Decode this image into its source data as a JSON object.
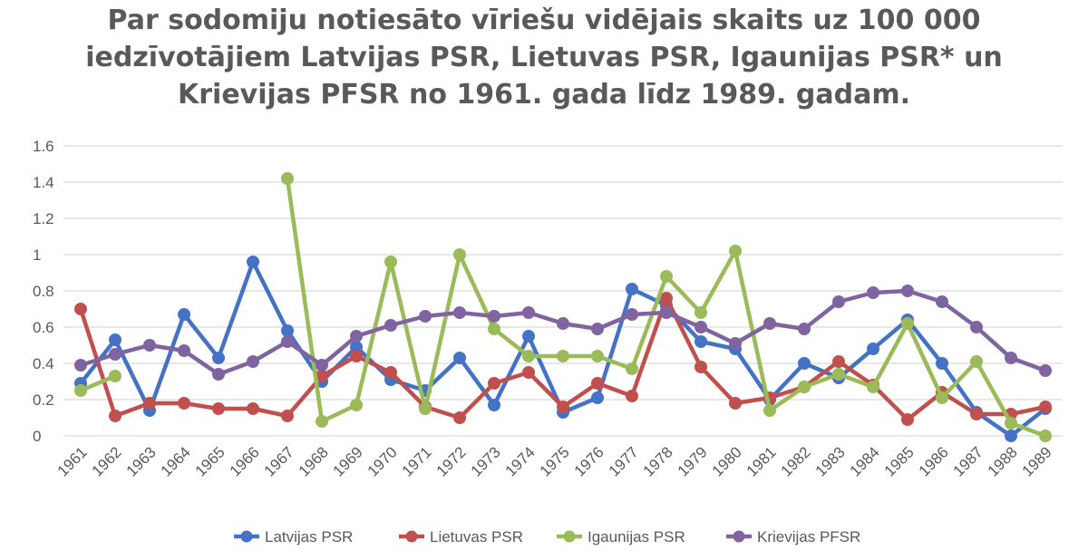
{
  "chart_data": {
    "type": "line",
    "title_lines": [
      "Par sodomiju notiesāto vīriešu vidējais skaits uz 100 000",
      "iedzīvotājiem Latvijas PSR, Lietuvas PSR, Igaunijas PSR* un",
      "Krievijas PFSR no 1961. gada līdz 1989. gadam."
    ],
    "categories": [
      "1961",
      "1962",
      "1963",
      "1964",
      "1965",
      "1966",
      "1967",
      "1968",
      "1969",
      "1970",
      "1971",
      "1972",
      "1973",
      "1974",
      "1975",
      "1976",
      "1977",
      "1978",
      "1979",
      "1980",
      "1981",
      "1982",
      "1983",
      "1984",
      "1985",
      "1986",
      "1987",
      "1988",
      "1989"
    ],
    "y_ticks": [
      "0",
      "0.2",
      "0.4",
      "0.6",
      "0.8",
      "1",
      "1.2",
      "1.4",
      "1.6"
    ],
    "ylim": [
      0,
      1.6
    ],
    "grid": true,
    "legend_position": "bottom",
    "series": [
      {
        "name": "Latvijas PSR",
        "color": "#4472c4",
        "values": [
          0.29,
          0.53,
          0.14,
          0.67,
          0.43,
          0.96,
          0.58,
          0.3,
          0.49,
          0.31,
          0.25,
          0.43,
          0.17,
          0.55,
          0.13,
          0.21,
          0.81,
          0.72,
          0.52,
          0.48,
          0.2,
          0.4,
          0.32,
          0.48,
          0.64,
          0.4,
          0.13,
          0.0,
          0.15
        ]
      },
      {
        "name": "Lietuvas PSR",
        "color": "#c0504d",
        "values": [
          0.7,
          0.11,
          0.18,
          0.18,
          0.15,
          0.15,
          0.11,
          0.33,
          0.44,
          0.35,
          0.16,
          0.1,
          0.29,
          0.35,
          0.16,
          0.29,
          0.22,
          0.76,
          0.38,
          0.18,
          0.21,
          0.27,
          0.41,
          0.28,
          0.09,
          0.24,
          0.12,
          0.12,
          0.16
        ]
      },
      {
        "name": "Igaunijas PSR",
        "color": "#9bbb59",
        "values": [
          0.25,
          0.33,
          null,
          null,
          null,
          null,
          1.42,
          0.08,
          0.17,
          0.96,
          0.15,
          1.0,
          0.59,
          0.44,
          0.44,
          0.44,
          0.37,
          0.88,
          0.68,
          1.02,
          0.14,
          0.27,
          0.34,
          0.27,
          0.62,
          0.21,
          0.41,
          0.07,
          0.0
        ]
      },
      {
        "name": "Krievijas PFSR",
        "color": "#8064a2",
        "values": [
          0.39,
          0.45,
          0.5,
          0.47,
          0.34,
          0.41,
          0.52,
          0.39,
          0.55,
          0.61,
          0.66,
          0.68,
          0.66,
          0.68,
          0.62,
          0.59,
          0.67,
          0.68,
          0.6,
          0.51,
          0.62,
          0.59,
          0.74,
          0.79,
          0.8,
          0.74,
          0.6,
          0.43,
          0.36
        ]
      }
    ]
  }
}
